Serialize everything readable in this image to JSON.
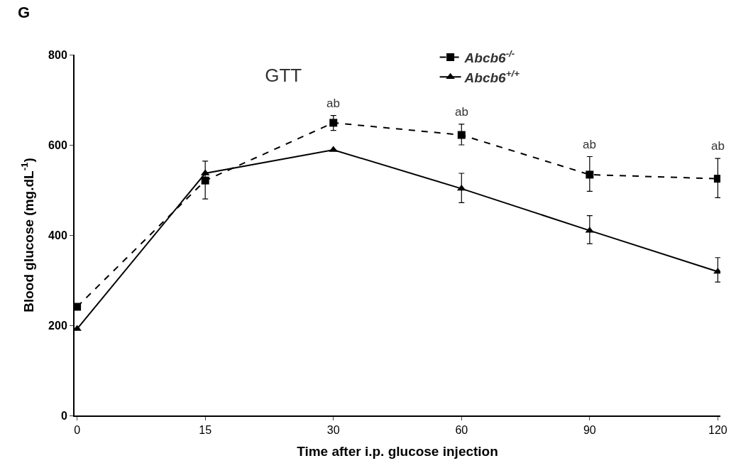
{
  "chart_data": {
    "type": "line",
    "title": "GTT",
    "xlabel": "Time after i.p. glucose injection",
    "ylabel": "Blood glucose (mg.dL$^{-1}$)",
    "categories": [
      "0",
      "15",
      "30",
      "60",
      "90",
      "120"
    ],
    "series": [
      {
        "name": "Abcb6$^{-/-}$",
        "color": "#000000",
        "marker": "square",
        "line_style": "dashed",
        "values": [
          241,
          521,
          649,
          622,
          534,
          525
        ],
        "errors": [
          null,
          [
            480,
            564
          ],
          [
            632,
            665
          ],
          [
            600,
            646
          ],
          [
            497,
            574
          ],
          [
            483,
            570
          ]
        ]
      },
      {
        "name": "Abcb6$^{+/+}$",
        "color": "#000000",
        "marker": "triangle",
        "line_style": "solid",
        "values": [
          192,
          537,
          589,
          503,
          410,
          319
        ],
        "errors": [
          null,
          null,
          null,
          [
            472,
            537
          ],
          [
            381,
            443
          ],
          [
            296,
            350
          ]
        ]
      }
    ],
    "ylim": [
      0,
      800
    ],
    "yticks": [
      0,
      200,
      400,
      600,
      800
    ],
    "legend": "top right",
    "annotations": [
      "G",
      "ab",
      "ab",
      "ab",
      "ab"
    ]
  }
}
